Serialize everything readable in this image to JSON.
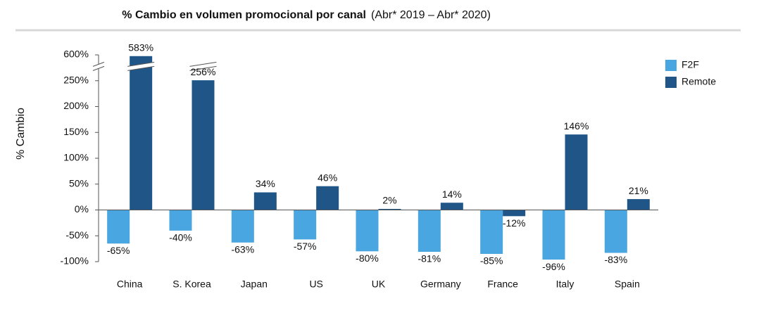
{
  "chart_data": {
    "type": "bar",
    "title": "% Cambio en volumen promocional por canal",
    "subtitle": "(Abr* 2019 – Abr* 2020)",
    "y_label": "% Cambio",
    "categories": [
      "China",
      "S. Korea",
      "Japan",
      "US",
      "UK",
      "Germany",
      "France",
      "Italy",
      "Spain"
    ],
    "series": [
      {
        "name": "F2F",
        "color": "#4aa6e0",
        "values": [
          -65,
          -40,
          -63,
          -57,
          -80,
          -81,
          -85,
          -96,
          -83
        ],
        "value_labels": [
          "-65%",
          "-40%",
          "-63%",
          "-57%",
          "-80%",
          "-81%",
          "-85%",
          "-96%",
          "-83%"
        ]
      },
      {
        "name": "Remote",
        "color": "#1f5587",
        "values": [
          583,
          256,
          34,
          46,
          2,
          14,
          -12,
          146,
          21
        ],
        "value_labels": [
          "583%",
          "256%",
          "34%",
          "46%",
          "2%",
          "14%",
          "-12%",
          "146%",
          "21%"
        ]
      }
    ],
    "ylim": [
      -100,
      600
    ],
    "yticks": [
      {
        "value": -100,
        "label": "-100%"
      },
      {
        "value": -50,
        "label": "-50%"
      },
      {
        "value": 0,
        "label": "0%"
      },
      {
        "value": 50,
        "label": "50%"
      },
      {
        "value": 100,
        "label": "100%"
      },
      {
        "value": 150,
        "label": "150%"
      },
      {
        "value": 200,
        "label": "200%"
      },
      {
        "value": 250,
        "label": "250%"
      },
      {
        "value": 600,
        "label": "600%"
      }
    ],
    "axis_break": true,
    "legend": "top-right"
  }
}
